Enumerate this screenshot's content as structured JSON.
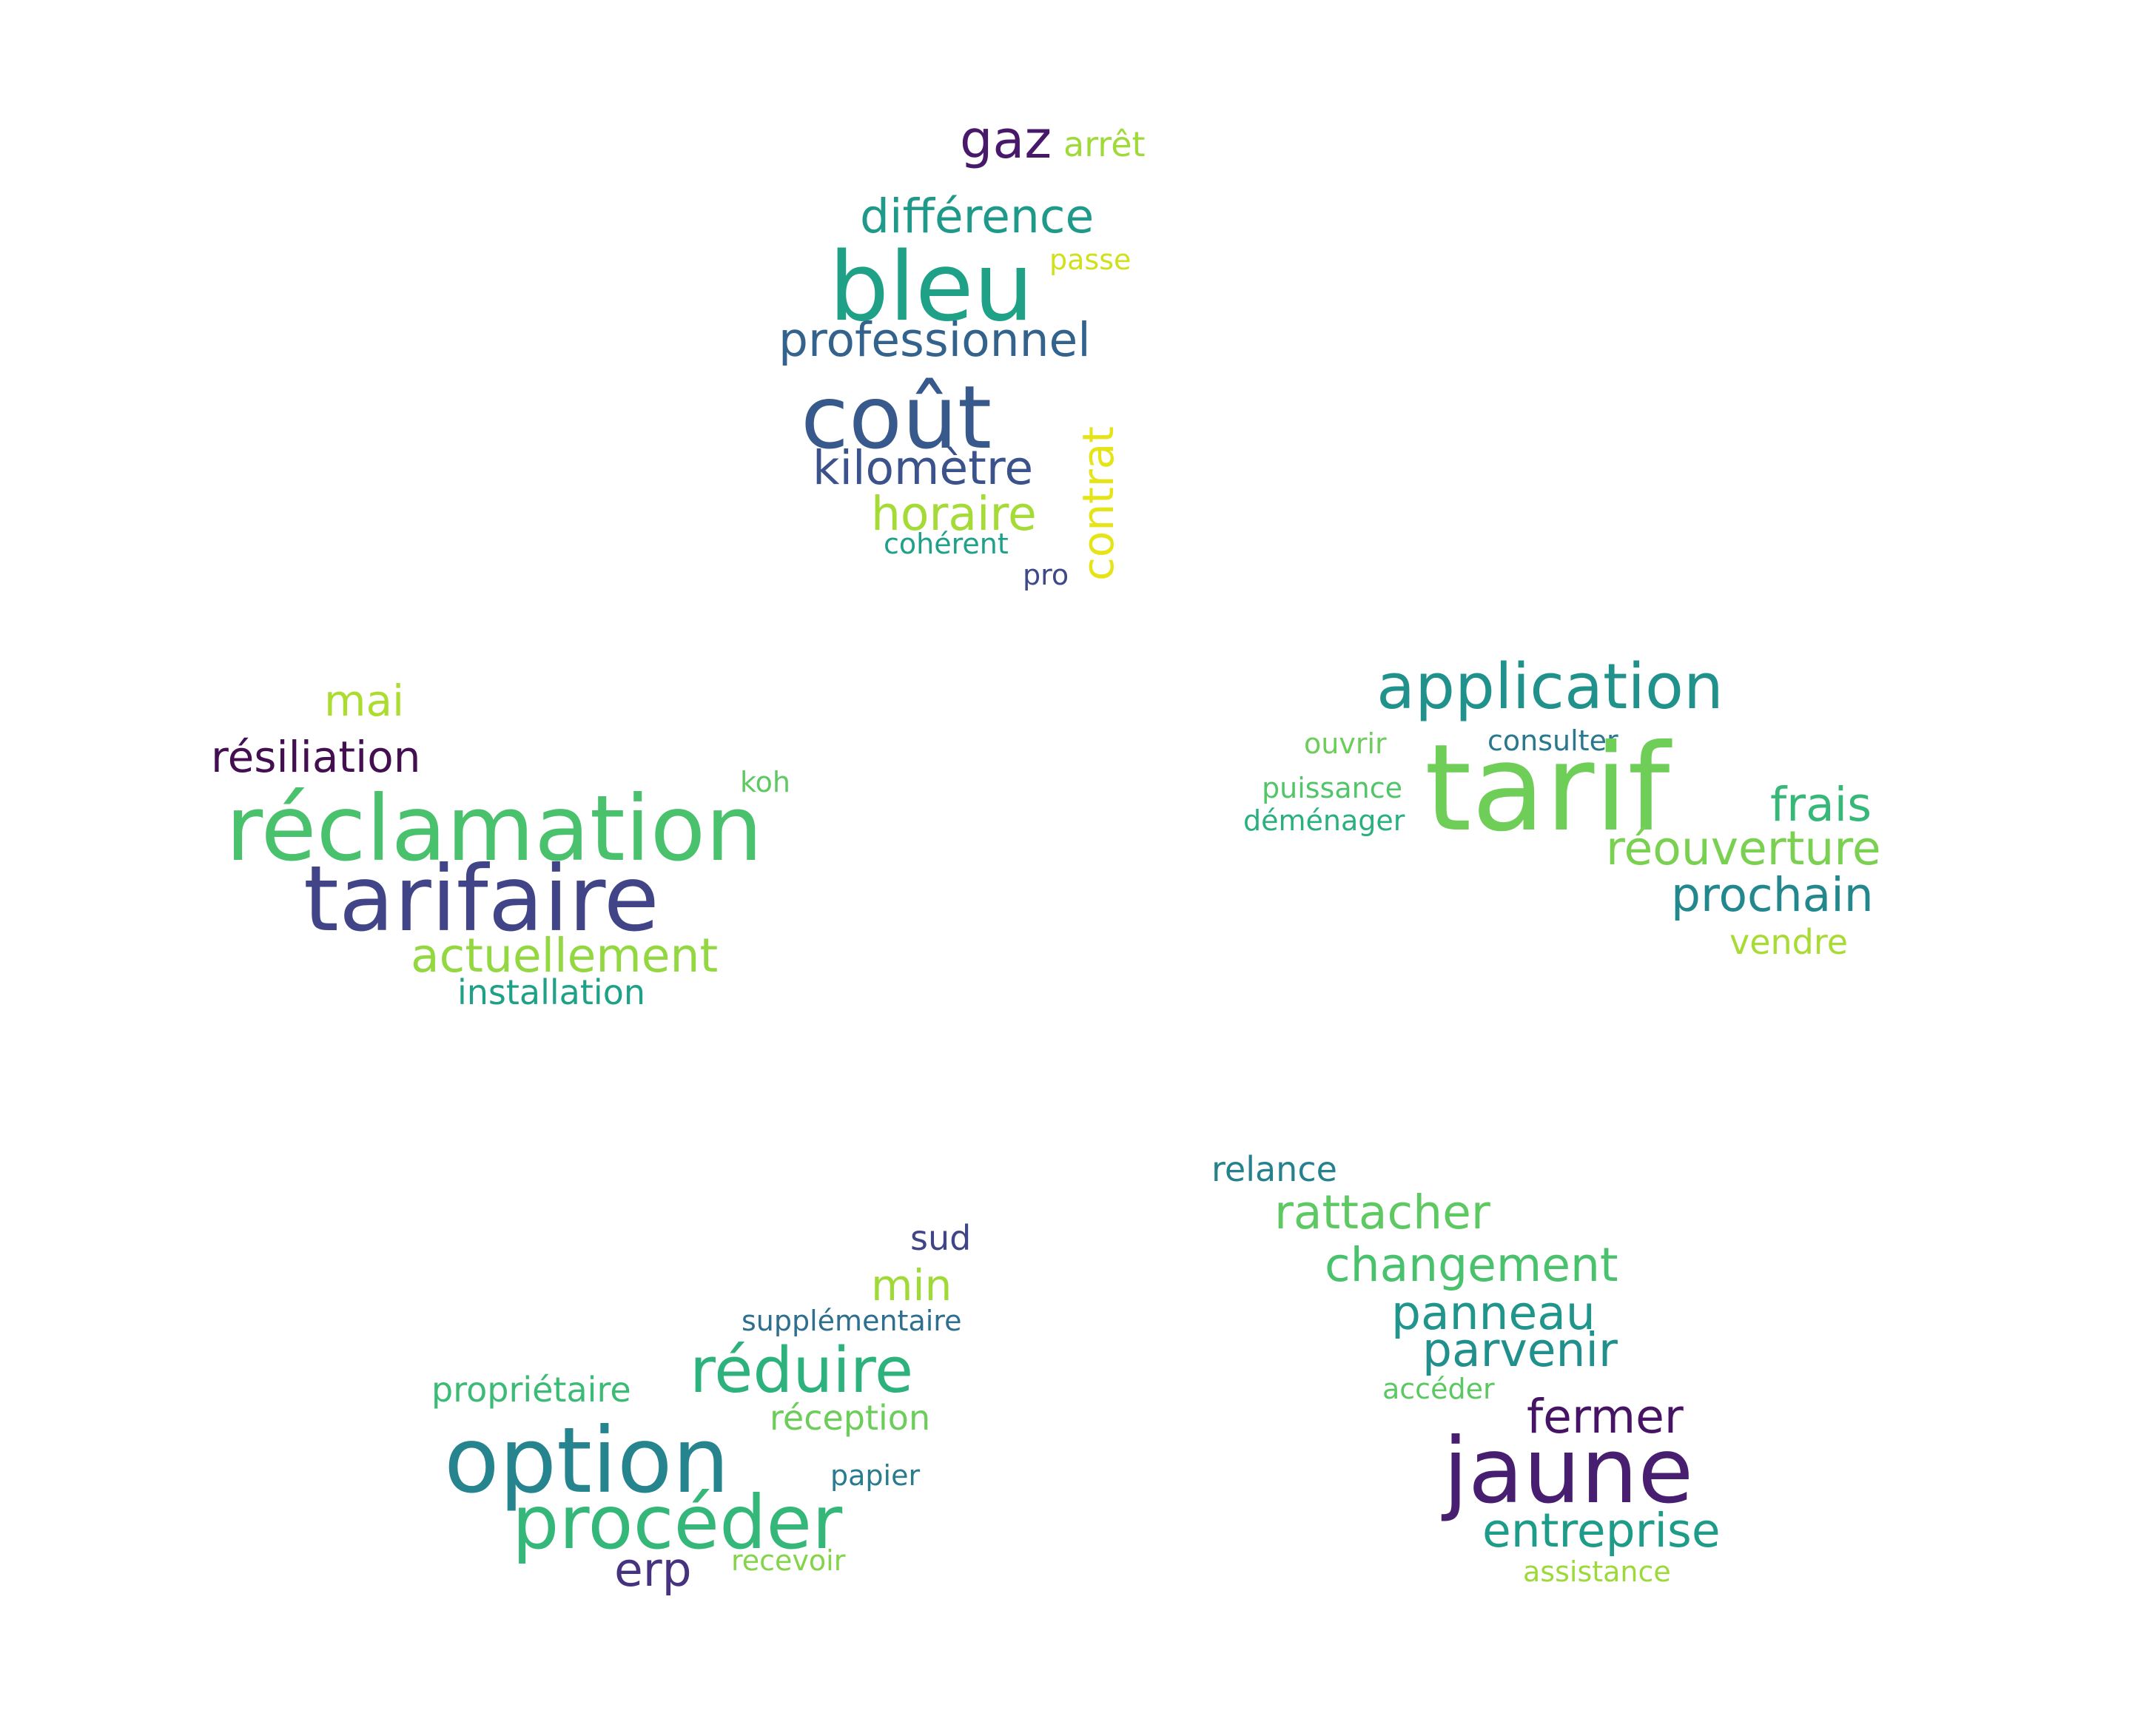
{
  "clusters": [
    {
      "words": [
        {
          "text": "gaz",
          "color": "#48186a"
        },
        {
          "text": "arrêt",
          "color": "#a0da39"
        },
        {
          "text": "différence",
          "color": "#1f9a8a"
        },
        {
          "text": "bleu",
          "color": "#1fa187"
        },
        {
          "text": "passe",
          "color": "#d0e11c"
        },
        {
          "text": "professionnel",
          "color": "#33638d"
        },
        {
          "text": "coût",
          "color": "#38598c"
        },
        {
          "text": "contrat",
          "color": "#e5e419"
        },
        {
          "text": "kilomètre",
          "color": "#3b528b"
        },
        {
          "text": "horaire",
          "color": "#a5db36"
        },
        {
          "text": "cohérent",
          "color": "#1fa088"
        },
        {
          "text": "pro",
          "color": "#3e4989"
        }
      ]
    },
    {
      "words": [
        {
          "text": "mai",
          "color": "#addc30"
        },
        {
          "text": "résiliation",
          "color": "#440f50"
        },
        {
          "text": "koh",
          "color": "#5ec962"
        },
        {
          "text": "réclamation",
          "color": "#4ac16d"
        },
        {
          "text": "tarifaire",
          "color": "#414487"
        },
        {
          "text": "actuellement",
          "color": "#93d741"
        },
        {
          "text": "installation",
          "color": "#1fa187"
        }
      ]
    },
    {
      "words": [
        {
          "text": "application",
          "color": "#21918c"
        },
        {
          "text": "ouvrir",
          "color": "#6ccd5a"
        },
        {
          "text": "consulter",
          "color": "#2a788e"
        },
        {
          "text": "tarif",
          "color": "#6ece58"
        },
        {
          "text": "puissance",
          "color": "#52c569"
        },
        {
          "text": "frais",
          "color": "#37b878"
        },
        {
          "text": "déménager",
          "color": "#2ab07f"
        },
        {
          "text": "réouverture",
          "color": "#7ad151"
        },
        {
          "text": "prochain",
          "color": "#23888e"
        },
        {
          "text": "vendre",
          "color": "#a8db34"
        }
      ]
    },
    {
      "words": [
        {
          "text": "sud",
          "color": "#404588"
        },
        {
          "text": "min",
          "color": "#a0da39"
        },
        {
          "text": "supplémentaire",
          "color": "#2e6e8e"
        },
        {
          "text": "réduire",
          "color": "#2db27d"
        },
        {
          "text": "propriétaire",
          "color": "#3bbb75"
        },
        {
          "text": "réception",
          "color": "#6ccd5a"
        },
        {
          "text": "option",
          "color": "#25848e"
        },
        {
          "text": "papier",
          "color": "#297b8e"
        },
        {
          "text": "procéder",
          "color": "#35b779"
        },
        {
          "text": "erp",
          "color": "#46327e"
        },
        {
          "text": "recevoir",
          "color": "#84d44b"
        }
      ]
    },
    {
      "words": [
        {
          "text": "relance",
          "color": "#26818e"
        },
        {
          "text": "rattacher",
          "color": "#5ec962"
        },
        {
          "text": "changement",
          "color": "#4ac16d"
        },
        {
          "text": "panneau",
          "color": "#1f958b"
        },
        {
          "text": "parvenir",
          "color": "#21908d"
        },
        {
          "text": "accéder",
          "color": "#5cc863"
        },
        {
          "text": "fermer",
          "color": "#471365"
        },
        {
          "text": "jaune",
          "color": "#481f70"
        },
        {
          "text": "entreprise",
          "color": "#1e9c89"
        },
        {
          "text": "assistance",
          "color": "#9dd93b"
        }
      ]
    }
  ]
}
